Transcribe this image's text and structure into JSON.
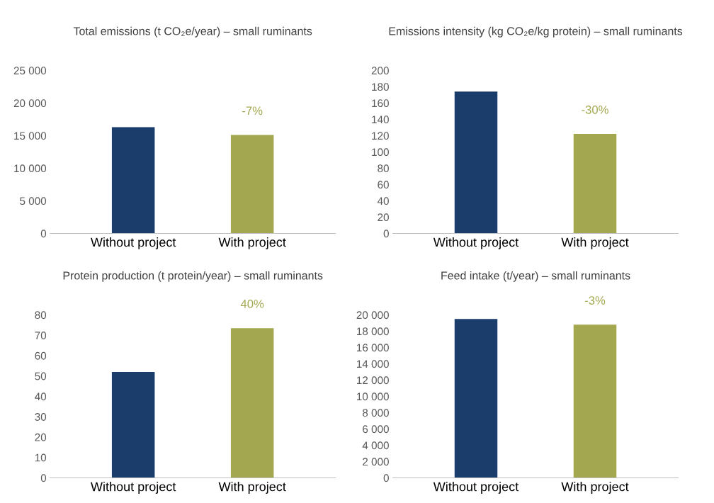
{
  "chart_data": [
    {
      "type": "bar",
      "title": "Total emissions (t CO₂e/year) – small ruminants",
      "categories": [
        "Without project",
        "With project"
      ],
      "values": [
        16300,
        15100
      ],
      "colors": [
        "#1b3d6b",
        "#a3a850"
      ],
      "ylim": [
        0,
        25000
      ],
      "yticks": [
        0,
        {
          "value": 5000,
          "label": "5 000"
        },
        {
          "value": 10000,
          "label": "10 000"
        },
        {
          "value": 15000,
          "label": "15 000"
        },
        {
          "value": 20000,
          "label": "20 000"
        },
        {
          "value": 25000,
          "label": "25 000"
        }
      ],
      "grid": false,
      "legend": false,
      "annotations": [
        {
          "text": "-7%",
          "x": "With project",
          "y": 15100
        }
      ]
    },
    {
      "type": "bar",
      "title": "Emissions intensity (kg CO₂e/kg protein) – small ruminants",
      "categories": [
        "Without project",
        "With project"
      ],
      "values": [
        174,
        122
      ],
      "colors": [
        "#1b3d6b",
        "#a3a850"
      ],
      "ylim": [
        0,
        200
      ],
      "yticks": [
        0,
        20,
        40,
        60,
        80,
        100,
        120,
        140,
        160,
        180,
        200
      ],
      "grid": false,
      "legend": false,
      "annotations": [
        {
          "text": "-30%",
          "x": "With project",
          "y": 122
        }
      ]
    },
    {
      "type": "bar",
      "title": "Protein production (t protein/year) – small ruminants",
      "categories": [
        "Without project",
        "With project"
      ],
      "values": [
        52,
        73.5
      ],
      "colors": [
        "#1b3d6b",
        "#a3a850"
      ],
      "ylim": [
        0,
        80
      ],
      "yticks": [
        0,
        10,
        20,
        30,
        40,
        50,
        60,
        70,
        80
      ],
      "grid": false,
      "legend": false,
      "annotations": [
        {
          "text": "40%",
          "x": "With project",
          "y": 73.5
        }
      ]
    },
    {
      "type": "bar",
      "title": "Feed intake (t/year) – small ruminants",
      "categories": [
        "Without project",
        "With project"
      ],
      "values": [
        19500,
        18800
      ],
      "colors": [
        "#1b3d6b",
        "#a3a850"
      ],
      "ylim": [
        0,
        20000
      ],
      "yticks": [
        0,
        {
          "value": 2000,
          "label": "2 000"
        },
        {
          "value": 4000,
          "label": "4 000"
        },
        {
          "value": 6000,
          "label": "6 000"
        },
        {
          "value": 8000,
          "label": "8 000"
        },
        {
          "value": 10000,
          "label": "10 000"
        },
        {
          "value": 12000,
          "label": "12 000"
        },
        {
          "value": 14000,
          "label": "14 000"
        },
        {
          "value": 16000,
          "label": "16 000"
        },
        {
          "value": 18000,
          "label": "18 000"
        },
        {
          "value": 20000,
          "label": "20 000"
        }
      ],
      "grid": false,
      "legend": false,
      "annotations": [
        {
          "text": "-3%",
          "x": "With project",
          "y": 18800
        }
      ]
    }
  ]
}
